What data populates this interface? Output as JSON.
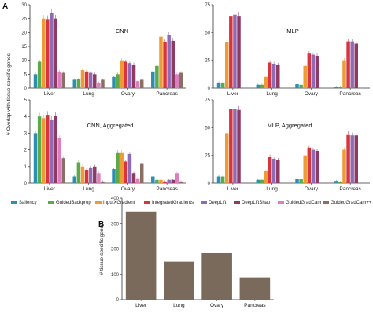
{
  "panel_labels": {
    "a": "A",
    "b": "B"
  },
  "ylabel_a": "# Overlap with tissue-specific genes",
  "methods": [
    {
      "name": "Saliency",
      "color": "#2b8fb0"
    },
    {
      "name": "GuidedBackprop",
      "color": "#5aaa4c"
    },
    {
      "name": "InputXGradient",
      "color": "#ef9a35"
    },
    {
      "name": "IntegratedGradients",
      "color": "#d8343f"
    },
    {
      "name": "DeepLift",
      "color": "#8f6bb5"
    },
    {
      "name": "DeepLiftShap",
      "color": "#8f3a62"
    },
    {
      "name": "GuidedGradCam",
      "color": "#dd7ec0"
    },
    {
      "name": "GuidedGradCam++",
      "color": "#8a6f65"
    }
  ],
  "chart_data": [
    {
      "type": "bar",
      "title": "CNN",
      "categories": [
        "Liver",
        "Lung",
        "Ovary",
        "Pancreas"
      ],
      "ylim": [
        0,
        30
      ],
      "yticks": [
        0,
        5,
        10,
        15,
        20,
        25,
        30
      ],
      "series": [
        {
          "name": "Saliency",
          "values": [
            5,
            3,
            4,
            6
          ]
        },
        {
          "name": "GuidedBackprop",
          "values": [
            9.5,
            3.2,
            5,
            8
          ]
        },
        {
          "name": "InputXGradient",
          "values": [
            25,
            6.5,
            10,
            18.5
          ]
        },
        {
          "name": "IntegratedGradients",
          "values": [
            24.8,
            6,
            9.5,
            16.5
          ]
        },
        {
          "name": "DeepLift",
          "values": [
            27,
            5.5,
            9,
            19
          ]
        },
        {
          "name": "DeepLiftShap",
          "values": [
            25,
            5,
            8.5,
            17
          ]
        },
        {
          "name": "GuidedGradCam",
          "values": [
            6,
            2,
            2.5,
            5
          ]
        },
        {
          "name": "GuidedGradCam++",
          "values": [
            5.5,
            3,
            3,
            5.5
          ]
        }
      ]
    },
    {
      "type": "bar",
      "title": "MLP",
      "categories": [
        "Liver",
        "Lung",
        "Ovary",
        "Pancreas"
      ],
      "ylim": [
        0,
        75
      ],
      "yticks": [
        0,
        25,
        50,
        75
      ],
      "series": [
        {
          "name": "Saliency",
          "values": [
            5,
            3,
            3.5,
            1
          ]
        },
        {
          "name": "GuidedBackprop",
          "values": [
            5,
            3,
            3,
            1
          ]
        },
        {
          "name": "InputXGradient",
          "values": [
            41,
            10,
            20,
            25
          ]
        },
        {
          "name": "IntegratedGradients",
          "values": [
            65,
            23,
            31,
            42
          ]
        },
        {
          "name": "DeepLift",
          "values": [
            66,
            22,
            30,
            42
          ]
        },
        {
          "name": "DeepLiftShap",
          "values": [
            65,
            21,
            29,
            40
          ]
        },
        {
          "name": "GuidedGradCam",
          "values": [
            0,
            0,
            0,
            0
          ]
        },
        {
          "name": "GuidedGradCam++",
          "values": [
            0,
            0,
            0,
            0
          ]
        }
      ]
    },
    {
      "type": "bar",
      "title": "CNN, Aggregated",
      "categories": [
        "Liver",
        "Lung",
        "Ovary",
        "Pancreas"
      ],
      "ylim": [
        0,
        5
      ],
      "yticks": [
        0,
        1,
        2,
        3,
        4,
        5
      ],
      "series": [
        {
          "name": "Saliency",
          "values": [
            3,
            0.4,
            0.85,
            0.4
          ]
        },
        {
          "name": "GuidedBackprop",
          "values": [
            4,
            1.25,
            1.85,
            0.2
          ]
        },
        {
          "name": "InputXGradient",
          "values": [
            3.9,
            1.0,
            1.85,
            0.2
          ]
        },
        {
          "name": "IntegratedGradients",
          "values": [
            4.1,
            0.8,
            1.3,
            0.1
          ]
        },
        {
          "name": "DeepLift",
          "values": [
            3.8,
            0.95,
            1.75,
            0.2
          ]
        },
        {
          "name": "DeepLiftShap",
          "values": [
            4.05,
            1.0,
            0.6,
            0.2
          ]
        },
        {
          "name": "GuidedGradCam",
          "values": [
            2.7,
            0.6,
            0.3,
            0.6
          ]
        },
        {
          "name": "GuidedGradCam++",
          "values": [
            1.5,
            0.1,
            1.2,
            0.1
          ]
        }
      ]
    },
    {
      "type": "bar",
      "title": "MLP, Aggregated",
      "categories": [
        "Liver",
        "Lung",
        "Ovary",
        "Pancreas"
      ],
      "ylim": [
        0,
        75
      ],
      "yticks": [
        0,
        25,
        50,
        75
      ],
      "series": [
        {
          "name": "Saliency",
          "values": [
            6,
            3,
            4,
            2
          ]
        },
        {
          "name": "GuidedBackprop",
          "values": [
            6,
            3,
            4,
            1
          ]
        },
        {
          "name": "InputXGradient",
          "values": [
            45,
            11,
            25,
            30
          ]
        },
        {
          "name": "IntegratedGradients",
          "values": [
            67,
            24,
            32,
            44
          ]
        },
        {
          "name": "DeepLift",
          "values": [
            67,
            22,
            30,
            43
          ]
        },
        {
          "name": "DeepLiftShap",
          "values": [
            66,
            21,
            29,
            43
          ]
        },
        {
          "name": "GuidedGradCam",
          "values": [
            0,
            0,
            0,
            0
          ]
        },
        {
          "name": "GuidedGradCam++",
          "values": [
            0,
            0,
            0,
            0
          ]
        }
      ]
    },
    {
      "type": "bar",
      "title": "",
      "ylabel": "# tissue-specific genes",
      "categories": [
        "Liver",
        "Lung",
        "Ovary",
        "Pancreas"
      ],
      "values": [
        348,
        150,
        183,
        88
      ],
      "ylim": [
        0,
        400
      ],
      "yticks": [
        0,
        100,
        200,
        300,
        400
      ],
      "color": "#7a6a5c"
    }
  ]
}
